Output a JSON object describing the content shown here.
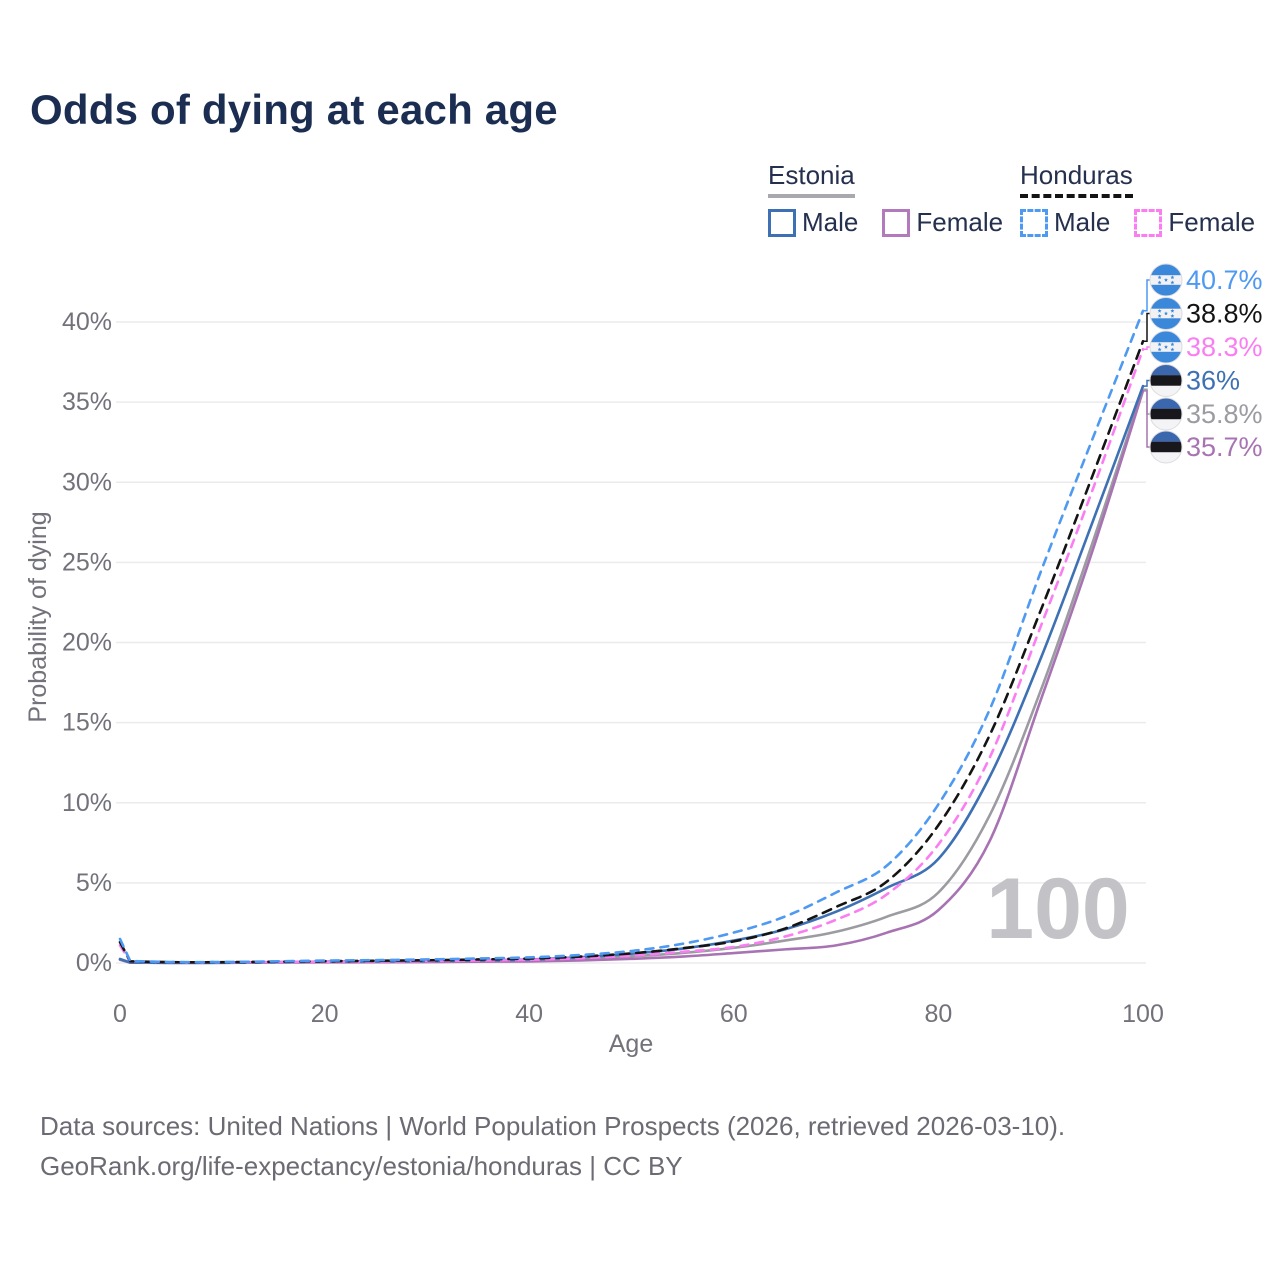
{
  "title": "Odds of dying at each age",
  "legend": {
    "groups": [
      {
        "country": "Estonia",
        "line_style": "solid",
        "underline_color": "#a8a8ae",
        "items": [
          {
            "label": "Male",
            "color": "#3e71b4",
            "dash": false
          },
          {
            "label": "Female",
            "color": "#b279bd",
            "dash": false
          }
        ]
      },
      {
        "country": "Honduras",
        "line_style": "dashed",
        "underline_color": "#141414",
        "items": [
          {
            "label": "Male",
            "color": "#4e99f2",
            "dash": true
          },
          {
            "label": "Female",
            "color": "#fb7df2",
            "dash": true
          }
        ]
      }
    ]
  },
  "chart_data": {
    "type": "line",
    "title": "Odds of dying at each age",
    "xlabel": "Age",
    "ylabel": "Probability of dying",
    "xlim": [
      0,
      100
    ],
    "ylim": [
      0,
      43
    ],
    "grid": true,
    "x_ticks": [
      0,
      20,
      40,
      60,
      80,
      100
    ],
    "x_tick_labels": [
      "0",
      "20",
      "40",
      "60",
      "80",
      "100"
    ],
    "y_ticks": [
      0,
      5,
      10,
      15,
      20,
      25,
      30,
      35,
      40
    ],
    "y_tick_labels": [
      "0%",
      "5%",
      "10%",
      "15%",
      "20%",
      "25%",
      "30%",
      "35%",
      "40%"
    ],
    "watermark": "100",
    "x": [
      0,
      1,
      5,
      10,
      15,
      20,
      25,
      30,
      35,
      40,
      45,
      50,
      55,
      60,
      65,
      70,
      75,
      80,
      85,
      90,
      95,
      100
    ],
    "series": [
      {
        "name": "Estonia",
        "country": "Estonia",
        "sex": "both",
        "color": "#9b9ba1",
        "dash": false,
        "values": [
          0.22,
          0.025,
          0.01,
          0.012,
          0.04,
          0.07,
          0.08,
          0.1,
          0.13,
          0.16,
          0.26,
          0.42,
          0.63,
          0.95,
          1.4,
          1.95,
          2.9,
          4.4,
          9.2,
          17.0,
          26.1,
          35.8
        ]
      },
      {
        "name": "Estonia female",
        "country": "Estonia",
        "sex": "female",
        "color": "#a873b2",
        "dash": false,
        "values": [
          0.2,
          0.02,
          0.008,
          0.01,
          0.03,
          0.04,
          0.05,
          0.06,
          0.08,
          0.1,
          0.16,
          0.26,
          0.4,
          0.62,
          0.85,
          1.1,
          1.9,
          3.3,
          7.6,
          16.4,
          25.6,
          35.7
        ]
      },
      {
        "name": "Estonia male",
        "country": "Estonia",
        "sex": "male",
        "color": "#3e71b4",
        "dash": false,
        "values": [
          0.25,
          0.03,
          0.01,
          0.015,
          0.05,
          0.09,
          0.11,
          0.13,
          0.17,
          0.22,
          0.36,
          0.58,
          0.9,
          1.4,
          2.1,
          3.2,
          4.7,
          6.5,
          11.6,
          19.0,
          27.4,
          36.0
        ]
      },
      {
        "name": "Honduras female",
        "country": "Honduras",
        "sex": "female",
        "color": "#fb7df2",
        "dash": true,
        "values": [
          1.1,
          0.09,
          0.04,
          0.04,
          0.06,
          0.08,
          0.1,
          0.12,
          0.16,
          0.2,
          0.3,
          0.46,
          0.7,
          1.0,
          1.65,
          2.7,
          4.3,
          7.4,
          12.8,
          21.0,
          29.4,
          38.3
        ]
      },
      {
        "name": "Honduras",
        "country": "Honduras",
        "sex": "both",
        "color": "#141414",
        "dash": true,
        "values": [
          1.3,
          0.1,
          0.05,
          0.05,
          0.08,
          0.11,
          0.14,
          0.17,
          0.22,
          0.28,
          0.4,
          0.6,
          0.92,
          1.35,
          2.15,
          3.5,
          5.1,
          8.6,
          14.2,
          22.0,
          30.3,
          38.8
        ]
      },
      {
        "name": "Honduras male",
        "country": "Honduras",
        "sex": "male",
        "color": "#4e99f2",
        "dash": true,
        "values": [
          1.5,
          0.12,
          0.06,
          0.06,
          0.1,
          0.15,
          0.18,
          0.22,
          0.28,
          0.35,
          0.5,
          0.75,
          1.2,
          1.9,
          2.9,
          4.4,
          6.1,
          9.9,
          15.8,
          24.4,
          32.6,
          40.7
        ]
      }
    ]
  },
  "end_labels": [
    {
      "value": "40.7%",
      "numeric": 40.7,
      "color": "#4e99f2",
      "flag": "honduras",
      "series": "Honduras male"
    },
    {
      "value": "38.8%",
      "numeric": 38.8,
      "color": "#141414",
      "flag": "honduras",
      "series": "Honduras"
    },
    {
      "value": "38.3%",
      "numeric": 38.3,
      "color": "#fb7df2",
      "flag": "honduras",
      "series": "Honduras female"
    },
    {
      "value": "36%",
      "numeric": 36.0,
      "color": "#3e71b4",
      "flag": "estonia",
      "series": "Estonia male"
    },
    {
      "value": "35.8%",
      "numeric": 35.8,
      "color": "#9b9ba1",
      "flag": "estonia",
      "series": "Estonia"
    },
    {
      "value": "35.7%",
      "numeric": 35.7,
      "color": "#a873b2",
      "flag": "estonia",
      "series": "Estonia female"
    }
  ],
  "flag_colors": {
    "honduras_blue": "#3b87da",
    "honduras_white": "#f2f2f4",
    "estonia_blue": "#3a67ae",
    "estonia_black": "#17171c",
    "estonia_white": "#f4f4f6"
  },
  "styles": {
    "grid_color": "#ebebee",
    "tick_color": "#72727b",
    "watermark_color": "#c3c3c7"
  },
  "footer": {
    "line1": "Data sources: United Nations | World Population Prospects (2026, retrieved 2026-03-10).",
    "line2": "GeoRank.org/life-expectancy/estonia/honduras | CC BY"
  }
}
